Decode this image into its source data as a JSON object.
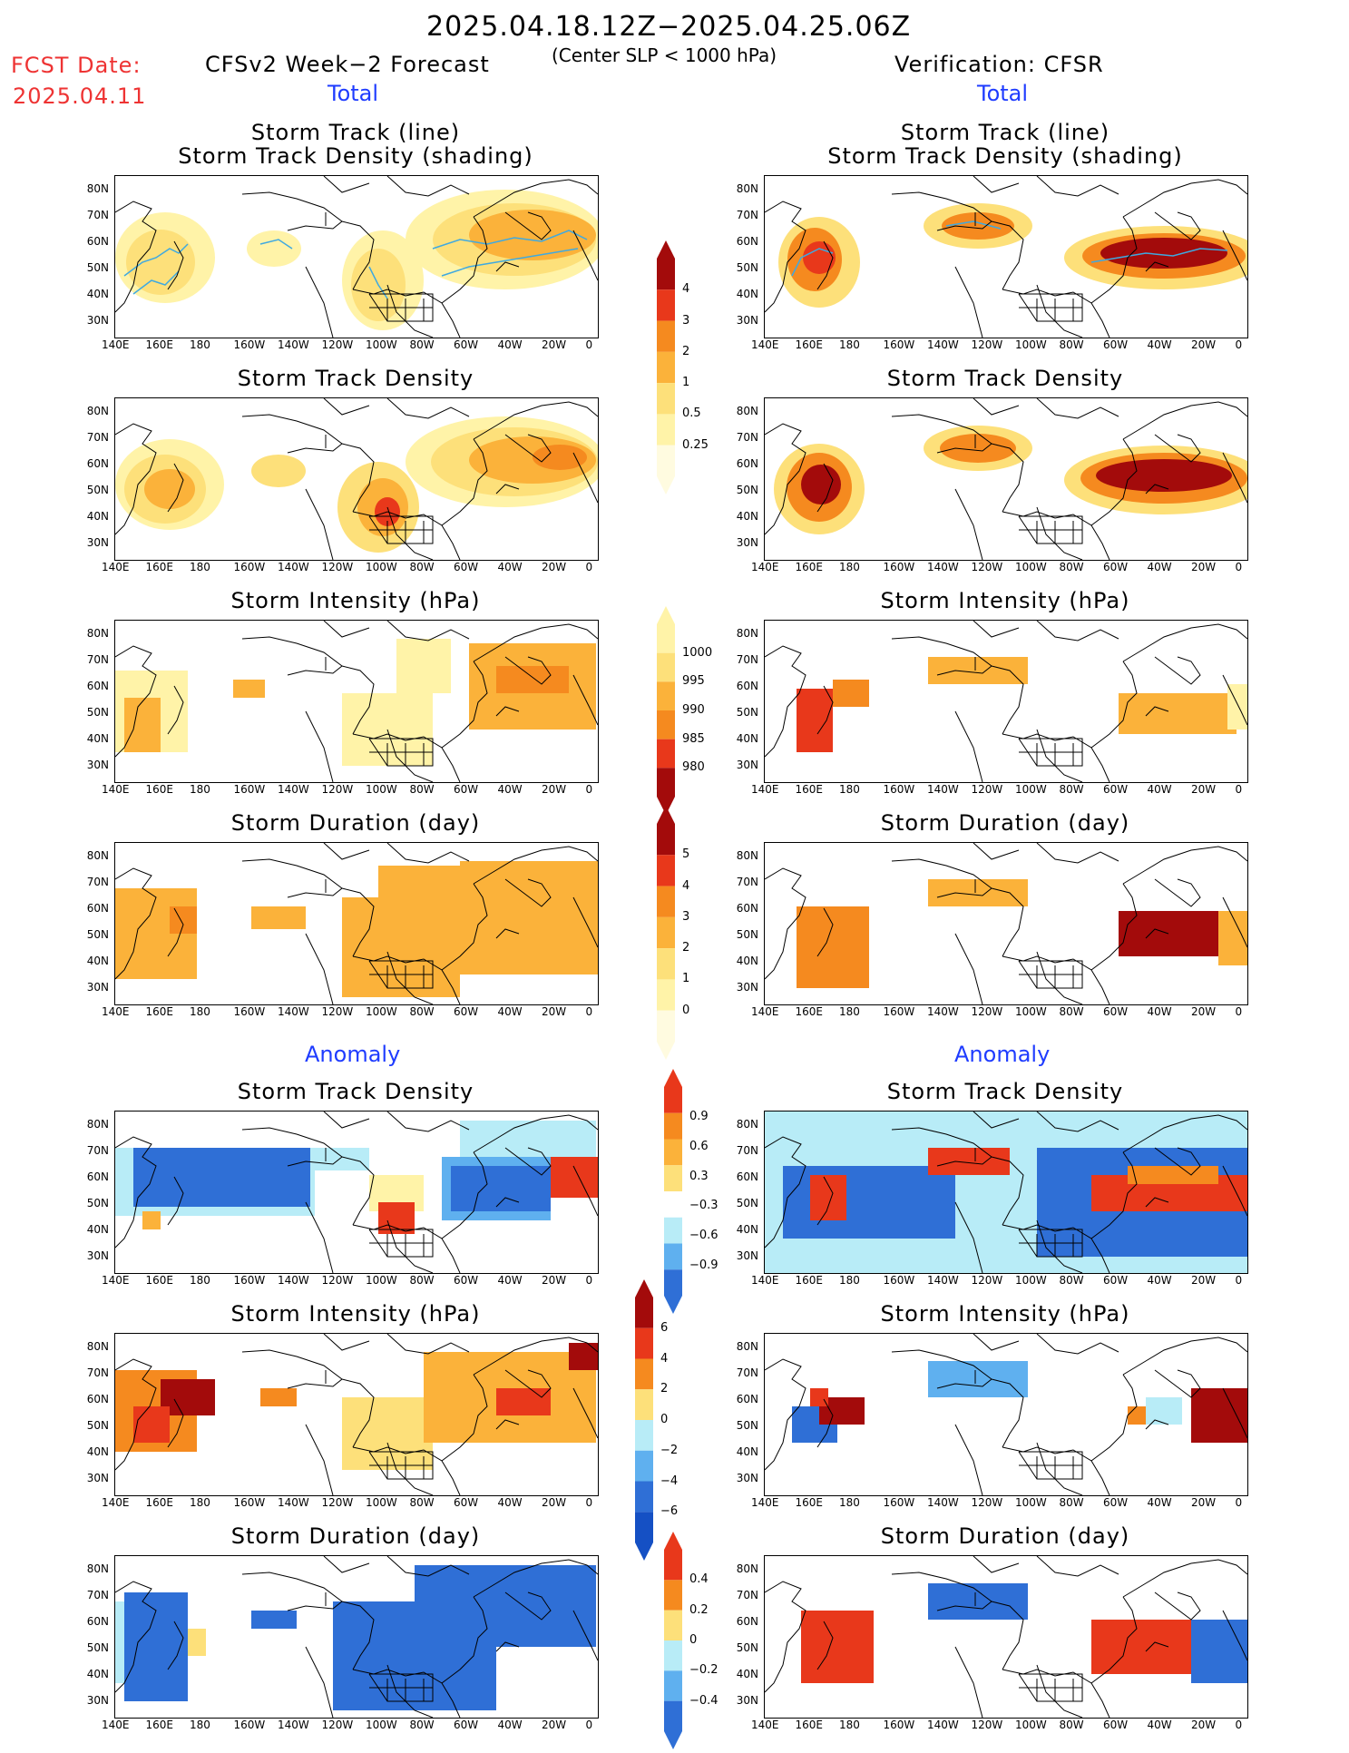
{
  "header": {
    "title": "2025.04.18.12Z−2025.04.25.06Z",
    "subtitle": "(Center SLP < 1000 hPa)",
    "fcst_label": "FCST Date:",
    "fcst_date": "2025.04.11",
    "left_model": "CFSv2 Week−2 Forecast",
    "right_model": "Verification: CFSR",
    "total_left": "Total",
    "total_right": "Total",
    "anomaly_left": "Anomaly",
    "anomaly_right": "Anomaly"
  },
  "panel_titles": {
    "p1_line1": "Storm Track (line)",
    "p1_line2": "Storm Track Density (shading)",
    "density": "Storm Track Density",
    "intensity": "Storm Intensity (hPa)",
    "duration": "Storm Duration (day)"
  },
  "axes": {
    "lat_labels": [
      "80N",
      "70N",
      "60N",
      "50N",
      "40N",
      "30N"
    ],
    "lon_labels": [
      "140E",
      "160E",
      "180",
      "160W",
      "140W",
      "120W",
      "100W",
      "80W",
      "60W",
      "40W",
      "20W",
      "0"
    ]
  },
  "colorbars": {
    "density": [
      "4",
      "3",
      "2",
      "1",
      "0.5",
      "0.25"
    ],
    "intensity": [
      "1000",
      "995",
      "990",
      "985",
      "980"
    ],
    "duration": [
      "5",
      "4",
      "3",
      "2",
      "1",
      "0"
    ],
    "anom_density": [
      "0.9",
      "0.6",
      "0.3",
      "−0.3",
      "−0.6",
      "−0.9"
    ],
    "anom_intensity": [
      "6",
      "4",
      "2",
      "0",
      "−2",
      "−4",
      "−6"
    ],
    "anom_duration": [
      "0.4",
      "0.2",
      "0",
      "−0.2",
      "−0.4"
    ]
  },
  "colors": {
    "vlight": "#fff3a8",
    "light": "#fde07a",
    "mid": "#fbb23a",
    "orange": "#f58a1f",
    "red": "#e8381b",
    "dred": "#a30b0b",
    "lblue": "#b8ecf7",
    "mblue": "#5fb0ef",
    "blue": "#2f6fd6",
    "dblue": "#1550c4",
    "track": "#3fa9e0"
  }
}
